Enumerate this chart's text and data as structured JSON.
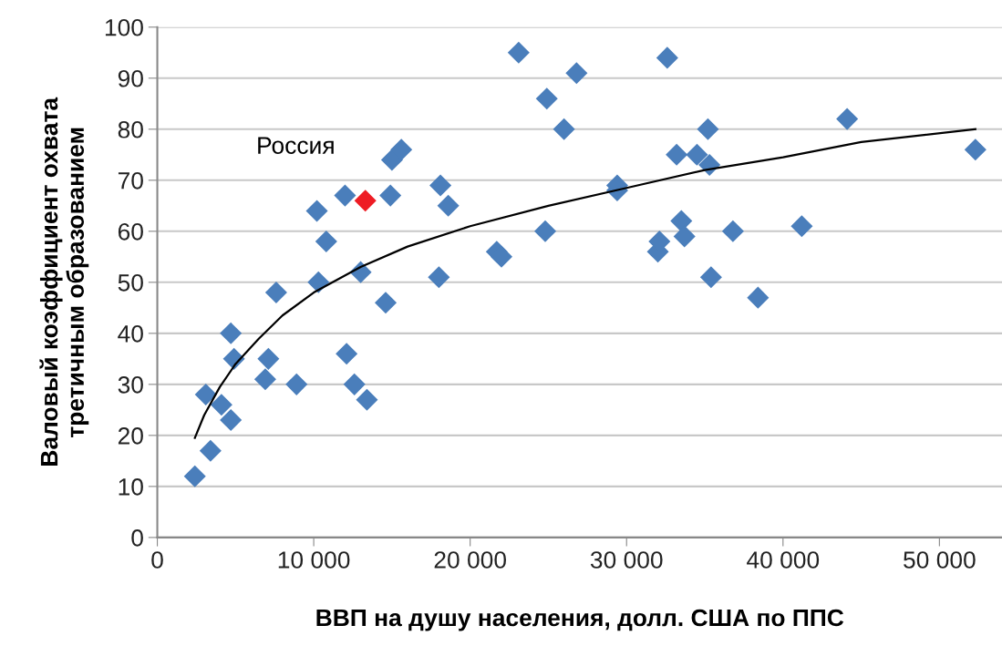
{
  "chart_data": {
    "type": "scatter",
    "xlabel": "ВВП на душу населения, долл. США по ППС",
    "ylabel": "Валовый коэффициент охвата\nтретичным образованием",
    "xlim": [
      0,
      54000
    ],
    "xticks": [
      {
        "value": 0,
        "label": "0"
      },
      {
        "value": 10000,
        "label": "10 000"
      },
      {
        "value": 20000,
        "label": "20 000"
      },
      {
        "value": 30000,
        "label": "30 000"
      },
      {
        "value": 40000,
        "label": "40 000"
      },
      {
        "value": 50000,
        "label": "50 000"
      }
    ],
    "ylim": [
      0,
      100
    ],
    "yticks": [
      0,
      10,
      20,
      30,
      40,
      50,
      60,
      70,
      80,
      90,
      100
    ],
    "grid": "y",
    "marker": "diamond",
    "series": [
      {
        "color": "#4a7ebb",
        "x": [
          2400,
          3100,
          3400,
          4100,
          4700,
          4700,
          4900,
          6900,
          7100,
          7600,
          8900,
          10200,
          10300,
          10800,
          12000,
          12100,
          12600,
          13000,
          13400,
          14600,
          14900,
          15000,
          15600,
          18100,
          18600,
          18000,
          21700,
          22000,
          23100,
          24800,
          24900,
          26000,
          26800,
          29400,
          29400,
          32000,
          32100,
          32600,
          33200,
          33500,
          33700,
          34500,
          35200,
          35300,
          35400,
          36800,
          38400,
          41200,
          44100,
          52300
        ],
        "values": [
          12,
          28,
          17,
          26,
          40,
          23,
          35,
          31,
          35,
          48,
          30,
          64,
          50,
          58,
          67,
          36,
          30,
          52,
          27,
          46,
          67,
          74,
          76,
          69,
          65,
          51,
          56,
          55,
          95,
          60,
          86,
          80,
          91,
          68,
          69,
          56,
          58,
          94,
          75,
          62,
          59,
          75,
          80,
          73,
          51,
          60,
          47,
          61,
          82,
          76
        ]
      },
      {
        "color": "#ee1c24",
        "x": [
          13300
        ],
        "values": [
          66
        ]
      },
      {
        "type": "line",
        "color": "#000000",
        "marker": "none",
        "x": [
          2400,
          3000,
          4000,
          5000,
          6500,
          8000,
          10000,
          13000,
          16000,
          20000,
          25000,
          30000,
          35000,
          40000,
          45000,
          52300
        ],
        "values": [
          19.5,
          24,
          29.5,
          34,
          39,
          43.5,
          48,
          53,
          57,
          61,
          65,
          68.5,
          72,
          74.5,
          77.5,
          80
        ]
      }
    ],
    "annotations": [
      {
        "text": "Россия",
        "x": 13300,
        "y": 66
      }
    ]
  }
}
